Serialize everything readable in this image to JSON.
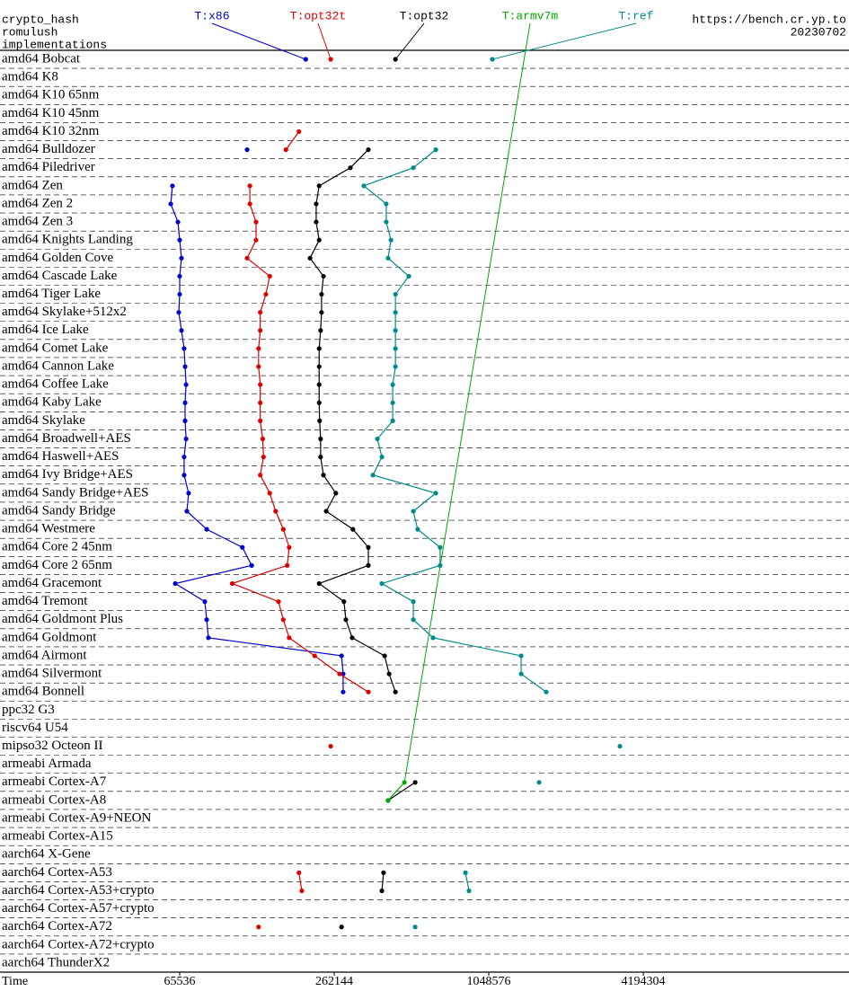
{
  "chart_data": {
    "type": "line",
    "title": "crypto_hash",
    "subtitle": "romulush",
    "legend_title": "implementations",
    "source": "https://bench.cr.yp.to",
    "date": "20230702",
    "x_label": "Time",
    "log_scale_x": true,
    "xlim": [
      13075,
      26550000
    ],
    "xticks": [
      65536,
      262144,
      1048576,
      4194304
    ],
    "categories": [
      "amd64 Bobcat",
      "amd64 K8",
      "amd64 K10 65nm",
      "amd64 K10 45nm",
      "amd64 K10 32nm",
      "amd64 Bulldozer",
      "amd64 Piledriver",
      "amd64 Zen",
      "amd64 Zen 2",
      "amd64 Zen 3",
      "amd64 Knights Landing",
      "amd64 Golden Cove",
      "amd64 Cascade Lake",
      "amd64 Tiger Lake",
      "amd64 Skylake+512x2",
      "amd64 Ice Lake",
      "amd64 Comet Lake",
      "amd64 Cannon Lake",
      "amd64 Coffee Lake",
      "amd64 Kaby Lake",
      "amd64 Skylake",
      "amd64 Broadwell+AES",
      "amd64 Haswell+AES",
      "amd64 Ivy Bridge+AES",
      "amd64 Sandy Bridge+AES",
      "amd64 Sandy Bridge",
      "amd64 Westmere",
      "amd64 Core 2 45nm",
      "amd64 Core 2 65nm",
      "amd64 Gracemont",
      "amd64 Tremont",
      "amd64 Goldmont Plus",
      "amd64 Goldmont",
      "amd64 Airmont",
      "amd64 Silvermont",
      "amd64 Bonnell",
      "ppc32 G3",
      "riscv64 U54",
      "mipso32 Octeon II",
      "armeabi Armada",
      "armeabi Cortex-A7",
      "armeabi Cortex-A8",
      "armeabi Cortex-A9+NEON",
      "armeabi Cortex-A15",
      "aarch64 X-Gene",
      "aarch64 Cortex-A53",
      "aarch64 Cortex-A53+crypto",
      "aarch64 Cortex-A57+crypto",
      "aarch64 Cortex-A72",
      "aarch64 Cortex-A72+crypto",
      "aarch64 ThunderX2"
    ],
    "series": [
      {
        "name": "T:x86",
        "color": "#0000cc",
        "values": [
          203000,
          null,
          null,
          null,
          null,
          120000,
          null,
          61400,
          60500,
          64500,
          65536,
          66600,
          65536,
          65536,
          65000,
          66600,
          68200,
          68800,
          69400,
          68800,
          68800,
          69400,
          68200,
          68200,
          71000,
          69900,
          83500,
          115000,
          125000,
          63000,
          82100,
          83500,
          84800,
          280000,
          284000,
          284000,
          null,
          null,
          null,
          null,
          null,
          null,
          null,
          null,
          null,
          null,
          null,
          null,
          null,
          null,
          null
        ]
      },
      {
        "name": "T:opt32t",
        "color": "#dd0000",
        "values": [
          254000,
          null,
          null,
          null,
          191000,
          170000,
          null,
          123000,
          123000,
          130000,
          130000,
          120000,
          147000,
          142000,
          135000,
          135000,
          133000,
          133000,
          135000,
          135000,
          135000,
          138000,
          139000,
          135000,
          147000,
          155000,
          166000,
          175000,
          172000,
          105000,
          159000,
          166000,
          175000,
          220000,
          275000,
          356000,
          null,
          null,
          254000,
          null,
          null,
          null,
          null,
          null,
          null,
          191000,
          196000,
          null,
          133000,
          null,
          null
        ]
      },
      {
        "name": "T:opt32",
        "color": "#000000",
        "values": [
          454000,
          null,
          null,
          null,
          null,
          356000,
          303000,
          229000,
          223000,
          223000,
          229000,
          211000,
          238000,
          234000,
          234000,
          232000,
          229000,
          229000,
          229000,
          229000,
          230000,
          232000,
          232000,
          238000,
          266000,
          244000,
          310000,
          356000,
          356000,
          229000,
          286000,
          291000,
          308000,
          412000,
          429000,
          454000,
          null,
          null,
          null,
          null,
          542000,
          425000,
          null,
          null,
          null,
          408000,
          402000,
          null,
          280000,
          null,
          null
        ]
      },
      {
        "name": "T:armv7m",
        "color": "#00aa00",
        "values": [
          null,
          null,
          null,
          null,
          null,
          null,
          null,
          null,
          null,
          null,
          null,
          null,
          null,
          null,
          null,
          null,
          null,
          null,
          null,
          null,
          null,
          null,
          null,
          null,
          null,
          null,
          null,
          null,
          null,
          null,
          null,
          null,
          null,
          null,
          null,
          null,
          null,
          null,
          null,
          null,
          492000,
          425000,
          null,
          null,
          null,
          null,
          null,
          null,
          null,
          null,
          null
        ]
      },
      {
        "name": "T:ref",
        "color": "#008b8b",
        "values": [
          1083000,
          null,
          null,
          null,
          null,
          652000,
          533000,
          342000,
          418000,
          418000,
          436000,
          425000,
          512000,
          454000,
          454000,
          454000,
          454000,
          454000,
          443000,
          443000,
          443000,
          386000,
          402000,
          371000,
          652000,
          533000,
          554000,
          678000,
          678000,
          402000,
          533000,
          533000,
          636000,
          1402000,
          1402000,
          1756000,
          null,
          null,
          3401000,
          null,
          1647000,
          null,
          null,
          null,
          null,
          851000,
          878000,
          null,
          542000,
          null,
          null
        ]
      }
    ]
  }
}
